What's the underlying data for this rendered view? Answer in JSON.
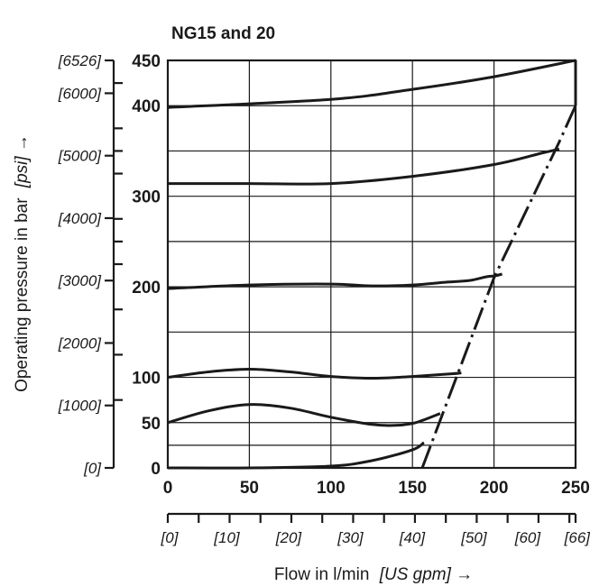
{
  "chart_data": {
    "type": "line",
    "title": "NG15 and 20",
    "xlabel": "Flow in l/min",
    "xlabel_unit": "[US gpm] →",
    "ylabel": "Operating pressure in bar",
    "ylabel_unit": "[psi] →",
    "xlim": [
      0,
      250
    ],
    "ylim": [
      0,
      450
    ],
    "x_ticks": [
      "0",
      "50",
      "100",
      "150",
      "200",
      "250"
    ],
    "y_ticks": [
      "0",
      "50",
      "100",
      "200",
      "300",
      "400",
      "450"
    ],
    "y_ticks_values": [
      0,
      50,
      100,
      200,
      300,
      400,
      450
    ],
    "secondary_x_ticks": [
      "[0]",
      "[10]",
      "[20]",
      "[30]",
      "[40]",
      "[50]",
      "[60]",
      "[66]"
    ],
    "secondary_x_ticks_values": [
      0,
      10,
      20,
      30,
      40,
      50,
      60,
      66
    ],
    "secondary_y_ticks": [
      "[0]",
      "[1000]",
      "[2000]",
      "[3000]",
      "[4000]",
      "[5000]",
      "[6000]",
      "[6526]"
    ],
    "secondary_y_ticks_values": [
      0,
      1000,
      2000,
      3000,
      4000,
      5000,
      6000,
      6526
    ],
    "grid": true,
    "series": [
      {
        "x": [
          0,
          50,
          100,
          125,
          150,
          157
        ],
        "y": [
          0,
          0,
          2,
          8,
          20,
          28
        ]
      },
      {
        "x": [
          0,
          25,
          50,
          75,
          100,
          125,
          140,
          152,
          167
        ],
        "y": [
          50,
          63,
          70,
          66,
          56,
          48,
          47,
          50,
          60
        ]
      },
      {
        "x": [
          0,
          25,
          50,
          75,
          100,
          125,
          150,
          175,
          180
        ],
        "y": [
          100,
          106,
          109,
          106,
          101,
          99,
          101,
          104,
          105
        ]
      },
      {
        "x": [
          0,
          50,
          100,
          125,
          150,
          170,
          185,
          195,
          200,
          205
        ],
        "y": [
          198,
          202,
          203,
          201,
          202,
          205,
          207,
          211,
          212,
          214
        ]
      },
      {
        "x": [
          0,
          50,
          100,
          150,
          200,
          230,
          240
        ],
        "y": [
          314,
          314,
          314,
          322,
          335,
          348,
          352
        ]
      },
      {
        "x": [
          0,
          100,
          150,
          200,
          250
        ],
        "y": [
          398,
          407,
          418,
          432,
          450
        ]
      }
    ],
    "limit_line": {
      "x": [
        156,
        200,
        240,
        250
      ],
      "y": [
        0,
        210,
        360,
        400
      ]
    },
    "right_edge": {
      "x": [
        250,
        250
      ],
      "y": [
        400,
        450
      ]
    }
  }
}
